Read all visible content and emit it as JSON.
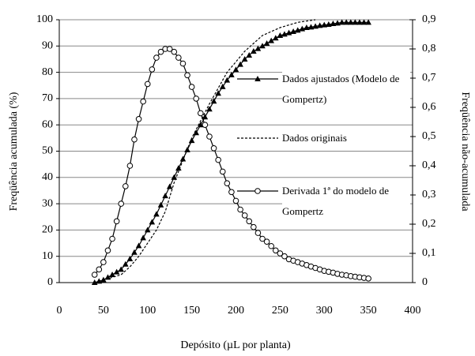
{
  "chart_data": {
    "type": "line",
    "xlabel": "Depósito (µL por planta)",
    "ylabel": "Freqüência acumulada (%)",
    "y2label": "Freqüência não-acumulada",
    "xlim": [
      0,
      400
    ],
    "xticks": [
      0,
      50,
      100,
      150,
      200,
      250,
      300,
      350,
      400
    ],
    "ylim": [
      0,
      100
    ],
    "yticks": [
      0,
      10,
      20,
      30,
      40,
      50,
      60,
      70,
      80,
      90,
      100
    ],
    "y2lim": [
      0,
      0.9
    ],
    "y2ticks": [
      0,
      {
        "value": 0.1,
        "label": "0,1"
      },
      {
        "value": 0.2,
        "label": "0,2"
      },
      {
        "value": 0.3,
        "label": "0,3"
      },
      {
        "value": 0.4,
        "label": "0,4"
      },
      {
        "value": 0.5,
        "label": "0,5"
      },
      {
        "value": 0.6,
        "label": "0,6"
      },
      {
        "value": 0.7,
        "label": "0,7"
      },
      {
        "value": 0.8,
        "label": "0,8"
      },
      {
        "value": 0.9,
        "label": "0,9"
      }
    ],
    "grid": true,
    "series": [
      {
        "name": "Dados ajustados (Modelo de Gompertz)",
        "color": "#000000",
        "marker": "triangle",
        "dash": "solid",
        "x": [
          40,
          45,
          50,
          55,
          60,
          65,
          70,
          75,
          80,
          85,
          90,
          95,
          100,
          105,
          110,
          115,
          120,
          125,
          130,
          135,
          140,
          145,
          150,
          155,
          160,
          165,
          170,
          175,
          180,
          185,
          190,
          195,
          200,
          205,
          210,
          215,
          220,
          225,
          230,
          235,
          240,
          245,
          250,
          255,
          260,
          265,
          270,
          275,
          280,
          285,
          290,
          295,
          300,
          305,
          310,
          315,
          320,
          325,
          330,
          335,
          340,
          345,
          350
        ],
        "values": [
          0,
          0.5,
          1,
          2,
          3,
          4,
          5,
          7,
          9,
          11.5,
          14,
          17,
          20,
          23,
          26,
          29.5,
          33,
          36.5,
          40,
          43.5,
          47,
          50.5,
          54,
          57,
          60,
          63,
          66,
          69,
          72,
          74.5,
          77,
          79,
          81,
          83,
          85,
          86.5,
          88,
          89,
          90,
          91,
          92,
          93,
          94,
          94.5,
          95,
          95.5,
          96,
          96.5,
          97,
          97.2,
          97.5,
          97.8,
          98,
          98.2,
          98.5,
          98.7,
          99,
          99,
          99,
          99,
          99,
          99,
          99
        ]
      },
      {
        "name": "Dados originais",
        "color": "#000000",
        "marker": "none",
        "dash": "dotted",
        "x": [
          40,
          50,
          60,
          70,
          80,
          90,
          100,
          110,
          120,
          130,
          150,
          170,
          190,
          210,
          230,
          250,
          270,
          290
        ],
        "values": [
          0,
          1,
          2,
          3,
          6,
          10,
          15,
          20,
          27,
          38,
          55,
          68,
          80,
          88,
          94,
          97,
          99,
          100
        ]
      },
      {
        "name": "Derivada 1ª do modelo de Gompertz",
        "color": "#000000",
        "marker": "circle",
        "dash": "solid",
        "axis": "y2",
        "x": [
          40,
          45,
          50,
          55,
          60,
          65,
          70,
          75,
          80,
          85,
          90,
          95,
          100,
          105,
          110,
          115,
          120,
          125,
          130,
          135,
          140,
          145,
          150,
          155,
          160,
          165,
          170,
          175,
          180,
          185,
          190,
          195,
          200,
          205,
          210,
          215,
          220,
          225,
          230,
          235,
          240,
          245,
          250,
          255,
          260,
          265,
          270,
          275,
          280,
          285,
          290,
          295,
          300,
          305,
          310,
          315,
          320,
          325,
          330,
          335,
          340,
          345,
          350
        ],
        "values": [
          0.027,
          0.045,
          0.07,
          0.11,
          0.15,
          0.21,
          0.27,
          0.33,
          0.4,
          0.49,
          0.56,
          0.62,
          0.68,
          0.73,
          0.77,
          0.79,
          0.8,
          0.8,
          0.79,
          0.77,
          0.75,
          0.71,
          0.67,
          0.63,
          0.58,
          0.54,
          0.5,
          0.46,
          0.42,
          0.38,
          0.34,
          0.31,
          0.28,
          0.25,
          0.23,
          0.21,
          0.19,
          0.17,
          0.15,
          0.14,
          0.125,
          0.11,
          0.1,
          0.09,
          0.08,
          0.075,
          0.07,
          0.065,
          0.06,
          0.055,
          0.05,
          0.045,
          0.04,
          0.037,
          0.034,
          0.03,
          0.027,
          0.025,
          0.022,
          0.02,
          0.018,
          0.016,
          0.014
        ]
      }
    ]
  }
}
